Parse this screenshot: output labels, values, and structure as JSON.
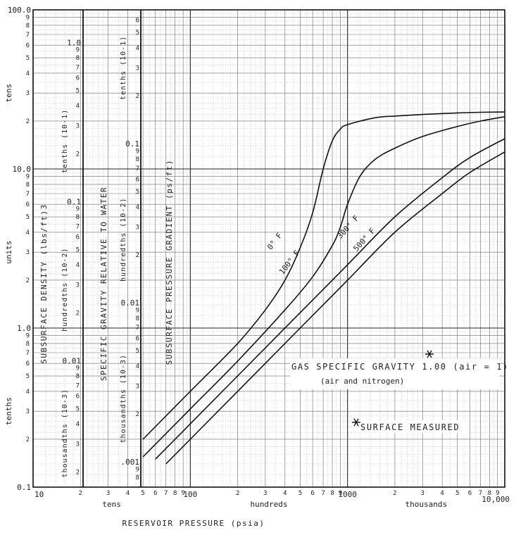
{
  "chart_data": {
    "type": "line",
    "x_scale": "log",
    "y_scale": "log",
    "xlim": [
      10,
      10000
    ],
    "ylim": [
      0.1,
      100
    ],
    "grid": true,
    "x_tick_labels": [
      "10",
      "100",
      "1000",
      "10,000"
    ],
    "x_minor_labels": [
      "2",
      "3",
      "4",
      "5",
      "6",
      "7",
      "8",
      "9"
    ],
    "x_decade_labels": [
      "tens",
      "hundreds",
      "thousands"
    ],
    "xlabel": "RESERVOIR PRESSURE (psia)",
    "density_axis": {
      "title": "SUBSURFACE DENSITY (lbs/ft)3",
      "tick_labels": [
        "0.1",
        "1.0",
        "10.0",
        "100.0"
      ],
      "decade_labels": [
        "tenths",
        "units",
        "tens"
      ]
    },
    "specific_gravity_axis": {
      "title": "SPECIFIC GRAVITY RELATIVE TO WATER",
      "tick_labels": [
        "0.01",
        "0.1",
        "1.0"
      ],
      "decade_labels": [
        "thousandths (10-3)",
        "hundredths (10-2)",
        "tenths (10-1)"
      ]
    },
    "gradient_axis": {
      "title": "SUBSURFACE PRESSURE GRADIENT (ps/ft)",
      "tick_labels": [
        ".001",
        "0.01",
        "0.1"
      ],
      "decade_labels": [
        "thousandths (10-3)",
        "hundredths (10-2)",
        "tenths (10-1)"
      ]
    },
    "series": [
      {
        "name": "0° F",
        "x": [
          50,
          100,
          200,
          300,
          400,
          500,
          600,
          700,
          800,
          900,
          1000,
          1500,
          2000,
          3000,
          5000,
          7000,
          10000
        ],
        "y": [
          0.2,
          0.4,
          0.8,
          1.3,
          2.0,
          3.2,
          5.3,
          10.0,
          15.0,
          17.8,
          19.0,
          21.0,
          21.5,
          22.0,
          22.5,
          22.7,
          22.8
        ]
      },
      {
        "name": "100° F",
        "x": [
          50,
          100,
          200,
          400,
          600,
          800,
          900,
          1000,
          1200,
          1500,
          2000,
          3000,
          5000,
          7000,
          10000
        ],
        "y": [
          0.155,
          0.31,
          0.62,
          1.3,
          2.1,
          3.3,
          4.3,
          6.0,
          9.0,
          11.5,
          13.5,
          16.0,
          18.5,
          20.0,
          21.3
        ]
      },
      {
        "name": "300° F",
        "x": [
          60,
          100,
          200,
          500,
          1000,
          2000,
          4000,
          6000,
          10000
        ],
        "y": [
          0.15,
          0.25,
          0.5,
          1.25,
          2.5,
          5.0,
          8.8,
          11.8,
          15.5
        ]
      },
      {
        "name": "500° F",
        "x": [
          70,
          100,
          200,
          500,
          1000,
          2000,
          4000,
          6000,
          10000
        ],
        "y": [
          0.14,
          0.2,
          0.4,
          1.0,
          2.0,
          4.0,
          7.0,
          9.5,
          12.8
        ]
      }
    ],
    "annotations": [
      "GAS SPECIFIC GRAVITY 1.00 (air = 1)",
      "(air and nitrogen)",
      "SURFACE MEASURED"
    ]
  }
}
